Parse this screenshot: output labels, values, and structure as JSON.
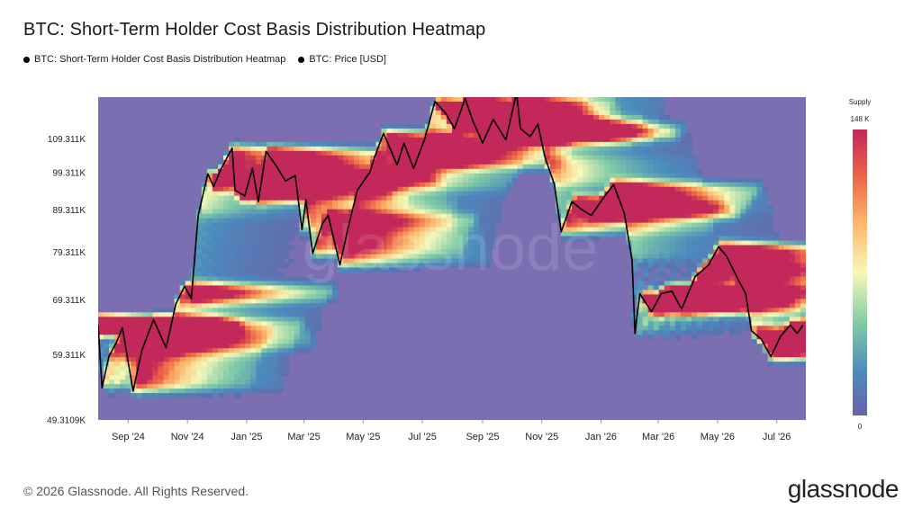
{
  "title": "BTC: Short-Term Holder Cost Basis Distribution Heatmap",
  "legend": [
    {
      "label": "BTC: Short-Term Holder Cost Basis Distribution Heatmap"
    },
    {
      "label": "BTC: Price [USD]"
    }
  ],
  "colorbar": {
    "title": "Supply",
    "max_label": "148 K",
    "min_label": "0"
  },
  "footer": {
    "copyright": "© 2026 Glassnode. All Rights Reserved.",
    "brand": "glassnode"
  },
  "watermark": "glassnode",
  "colors": {
    "background": "#7b6fb2",
    "price_line": "#000000",
    "hot": "#c2285a"
  },
  "chart_data": {
    "type": "heatmap",
    "y_scale": "log",
    "ylim": [
      49310.9,
      123000
    ],
    "yticks": [
      {
        "value": 49310.9,
        "label": "49.3109K"
      },
      {
        "value": 59311,
        "label": "59.311K"
      },
      {
        "value": 69311,
        "label": "69.311K"
      },
      {
        "value": 79311,
        "label": "79.311K"
      },
      {
        "value": 89311,
        "label": "89.311K"
      },
      {
        "value": 99311,
        "label": "99.311K"
      },
      {
        "value": 109311,
        "label": "109.311K"
      }
    ],
    "xlim": [
      "2024-08-01",
      "2026-07-31"
    ],
    "xticks": [
      {
        "date": "2024-09-01",
        "label": "Sep '24"
      },
      {
        "date": "2024-11-01",
        "label": "Nov '24"
      },
      {
        "date": "2025-01-01",
        "label": "Jan '25"
      },
      {
        "date": "2025-03-01",
        "label": "Mar '25"
      },
      {
        "date": "2025-05-01",
        "label": "May '25"
      },
      {
        "date": "2025-07-01",
        "label": "Jul '25"
      },
      {
        "date": "2025-09-01",
        "label": "Sep '25"
      },
      {
        "date": "2025-11-01",
        "label": "Nov '25"
      },
      {
        "date": "2026-01-01",
        "label": "Jan '26"
      },
      {
        "date": "2026-03-01",
        "label": "Mar '26"
      },
      {
        "date": "2026-05-01",
        "label": "May '26"
      },
      {
        "date": "2026-07-01",
        "label": "Jul '26"
      }
    ],
    "supply_range": [
      0,
      148000
    ],
    "price_series": {
      "name": "BTC: Price [USD]",
      "points": [
        [
          "2024-08-01",
          64500
        ],
        [
          "2024-08-05",
          54000
        ],
        [
          "2024-08-12",
          59000
        ],
        [
          "2024-08-20",
          61500
        ],
        [
          "2024-08-26",
          64000
        ],
        [
          "2024-09-06",
          53500
        ],
        [
          "2024-09-15",
          60000
        ],
        [
          "2024-09-27",
          65500
        ],
        [
          "2024-10-10",
          60500
        ],
        [
          "2024-10-20",
          68500
        ],
        [
          "2024-10-29",
          72000
        ],
        [
          "2024-11-05",
          69500
        ],
        [
          "2024-11-12",
          88000
        ],
        [
          "2024-11-22",
          99000
        ],
        [
          "2024-11-28",
          95500
        ],
        [
          "2024-12-05",
          100000
        ],
        [
          "2024-12-17",
          106500
        ],
        [
          "2024-12-20",
          94500
        ],
        [
          "2024-12-30",
          93000
        ],
        [
          "2025-01-07",
          100500
        ],
        [
          "2025-01-13",
          91500
        ],
        [
          "2025-01-21",
          105500
        ],
        [
          "2025-02-01",
          101000
        ],
        [
          "2025-02-10",
          97000
        ],
        [
          "2025-02-20",
          98500
        ],
        [
          "2025-02-27",
          84500
        ],
        [
          "2025-03-03",
          92000
        ],
        [
          "2025-03-10",
          79000
        ],
        [
          "2025-03-20",
          86000
        ],
        [
          "2025-03-26",
          88000
        ],
        [
          "2025-04-07",
          76500
        ],
        [
          "2025-04-15",
          84500
        ],
        [
          "2025-04-25",
          94500
        ],
        [
          "2025-05-08",
          99500
        ],
        [
          "2025-05-13",
          104000
        ],
        [
          "2025-05-22",
          111000
        ],
        [
          "2025-06-05",
          101500
        ],
        [
          "2025-06-12",
          108000
        ],
        [
          "2025-06-22",
          100500
        ],
        [
          "2025-07-03",
          109000
        ],
        [
          "2025-07-14",
          121500
        ],
        [
          "2025-07-25",
          117500
        ],
        [
          "2025-08-03",
          112500
        ],
        [
          "2025-08-14",
          122500
        ],
        [
          "2025-08-22",
          115000
        ],
        [
          "2025-09-01",
          108000
        ],
        [
          "2025-09-12",
          115500
        ],
        [
          "2025-09-25",
          109000
        ],
        [
          "2025-10-06",
          124500
        ],
        [
          "2025-10-10",
          112500
        ],
        [
          "2025-10-20",
          110000
        ],
        [
          "2025-10-28",
          114000
        ],
        [
          "2025-11-04",
          104000
        ],
        [
          "2025-11-14",
          96000
        ],
        [
          "2025-11-21",
          84000
        ],
        [
          "2025-12-02",
          91500
        ],
        [
          "2025-12-12",
          89500
        ],
        [
          "2025-12-22",
          88000
        ],
        [
          "2026-01-05",
          93000
        ],
        [
          "2026-01-14",
          96000
        ],
        [
          "2026-01-25",
          88500
        ],
        [
          "2026-02-02",
          77500
        ],
        [
          "2026-02-05",
          63000
        ],
        [
          "2026-02-10",
          70500
        ],
        [
          "2026-02-22",
          67000
        ],
        [
          "2026-03-04",
          70500
        ],
        [
          "2026-03-15",
          71000
        ],
        [
          "2026-03-25",
          67500
        ],
        [
          "2026-04-08",
          74000
        ],
        [
          "2026-04-22",
          76500
        ],
        [
          "2026-05-02",
          80500
        ],
        [
          "2026-05-10",
          78500
        ],
        [
          "2026-05-22",
          73500
        ],
        [
          "2026-05-30",
          70500
        ],
        [
          "2026-06-05",
          63500
        ],
        [
          "2026-06-15",
          62000
        ],
        [
          "2026-06-25",
          59000
        ],
        [
          "2026-07-05",
          62500
        ],
        [
          "2026-07-15",
          64500
        ],
        [
          "2026-07-22",
          63000
        ],
        [
          "2026-07-28",
          64500
        ]
      ]
    }
  }
}
